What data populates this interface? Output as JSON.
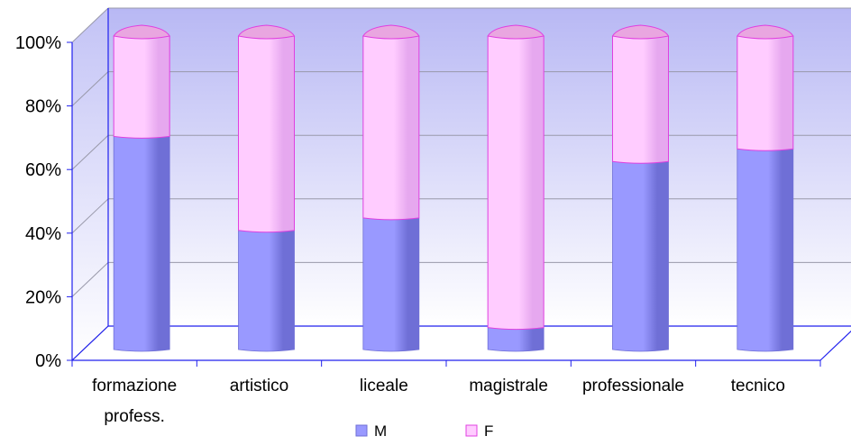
{
  "chart_data": {
    "type": "bar",
    "stacked": "percent",
    "three_d": true,
    "categories": [
      "formazione profess.",
      "artistico",
      "liceale",
      "magistrale",
      "professionale",
      "tecnico"
    ],
    "category_lines": [
      [
        "formazione",
        "profess."
      ],
      [
        "artistico"
      ],
      [
        "liceale"
      ],
      [
        "magistrale"
      ],
      [
        "professionale"
      ],
      [
        "tecnico"
      ]
    ],
    "series": [
      {
        "name": "M",
        "values": [
          68,
          38,
          42,
          7,
          60,
          64
        ]
      },
      {
        "name": "F",
        "values": [
          32,
          62,
          58,
          93,
          40,
          36
        ]
      }
    ],
    "ylim": [
      0,
      100
    ],
    "yticks": [
      0,
      20,
      40,
      60,
      80,
      100
    ],
    "ytick_labels": [
      "0%",
      "20%",
      "40%",
      "60%",
      "80%",
      "100%"
    ],
    "grid": true,
    "legend_position": "bottom",
    "colors": {
      "M": "#9999ff",
      "M_dark": "#6f6fd6",
      "M_top": "#b3b3ff",
      "F": "#ffccff",
      "F_dark": "#e6a8ef",
      "F_top": "#e9a6e0",
      "F_edge": "#e040e0",
      "wall_top": "#b8b8f4",
      "wall_bottom": "#ffffff",
      "axis": "#2020ee",
      "grid": "#9999aa"
    }
  }
}
